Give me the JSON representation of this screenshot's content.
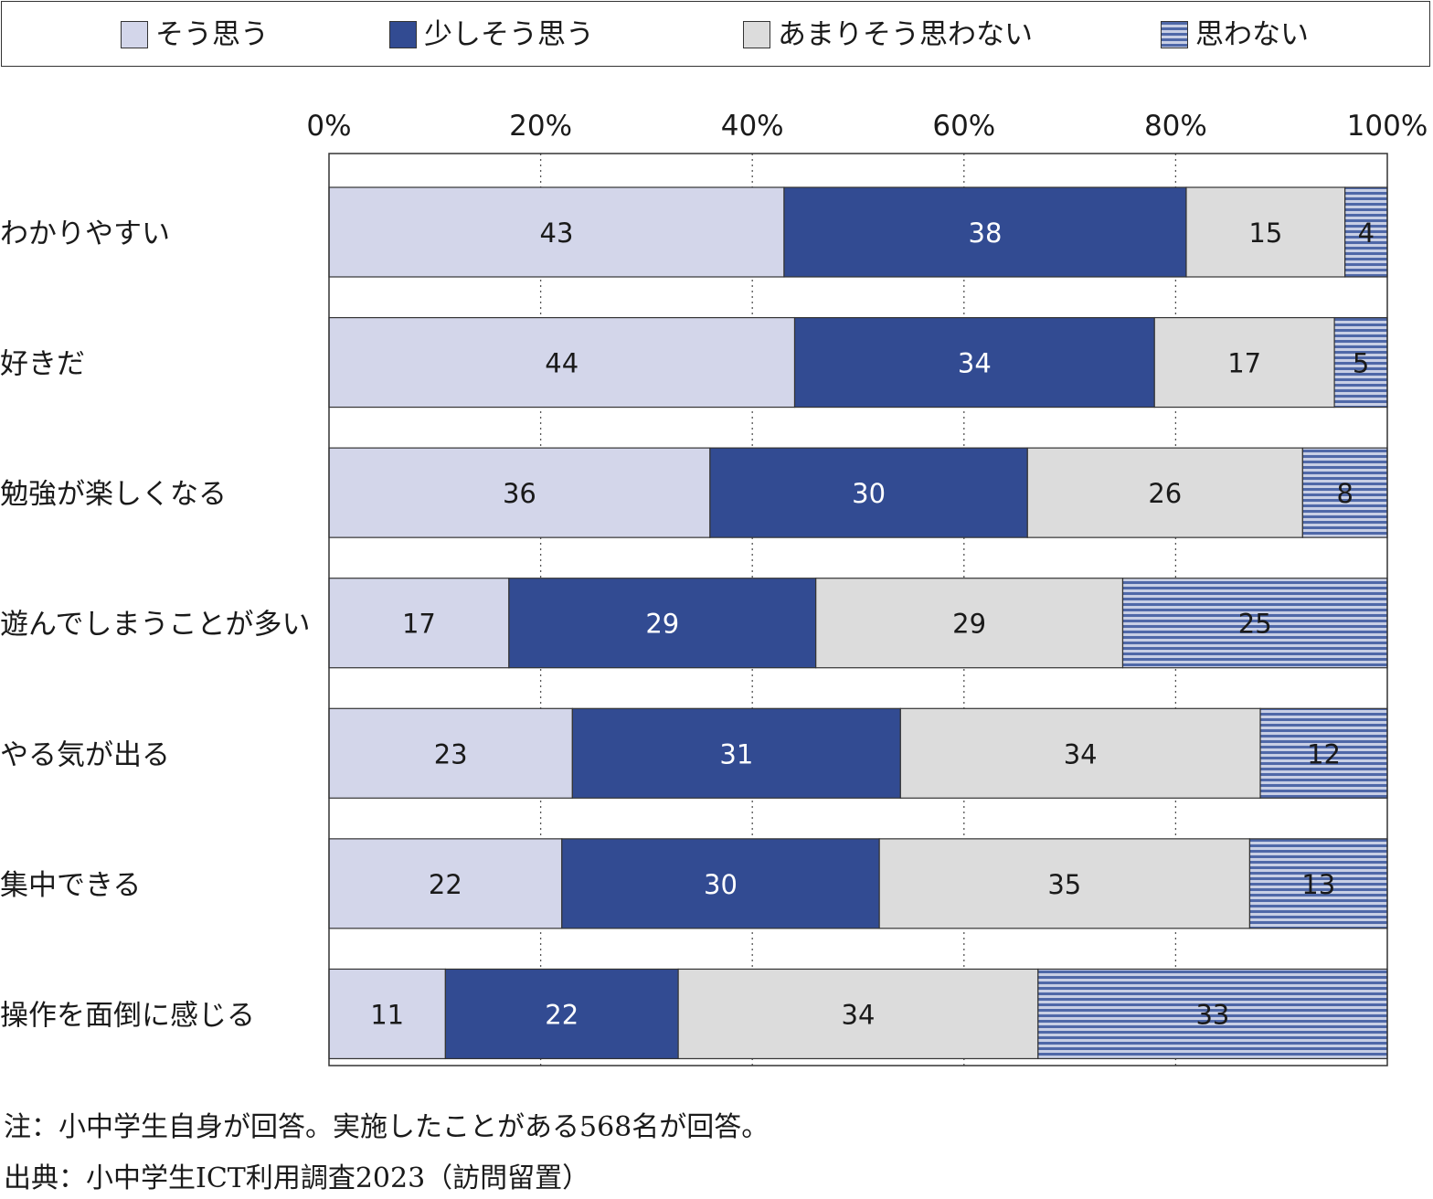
{
  "legend": {
    "items": [
      {
        "label": "そう思う",
        "color": "#d3d6ea"
      },
      {
        "label": "少しそう思う",
        "color": "#324b92"
      },
      {
        "label": "あまりそう思わない",
        "color": "#dcdcdc"
      },
      {
        "label": "思わない",
        "color": "#4f68a8",
        "pattern": "horizontal-stripes"
      }
    ]
  },
  "chart_data": {
    "type": "bar",
    "orientation": "horizontal",
    "stacked": true,
    "xlim": [
      0,
      100
    ],
    "x_ticks": [
      "0%",
      "20%",
      "40%",
      "60%",
      "80%",
      "100%"
    ],
    "grid": "vertical dotted",
    "legend_placement": "top",
    "categories": [
      "わかりやすい",
      "好きだ",
      "勉強が楽しくなる",
      "遊んでしまうことが多い",
      "やる気が出る",
      "集中できる",
      "操作を面倒に感じる"
    ],
    "series": [
      {
        "name": "そう思う",
        "values": [
          43,
          44,
          36,
          17,
          23,
          22,
          11
        ]
      },
      {
        "name": "少しそう思う",
        "values": [
          38,
          34,
          30,
          29,
          31,
          30,
          22
        ]
      },
      {
        "name": "あまりそう思わない",
        "values": [
          15,
          17,
          26,
          29,
          34,
          35,
          34
        ]
      },
      {
        "name": "思わない",
        "values": [
          4,
          5,
          8,
          25,
          12,
          13,
          33
        ]
      }
    ]
  },
  "notes": {
    "note": "注：小中学生自身が回答。実施したことがある568名が回答。",
    "source": "出典：小中学生ICT利用調査2023（訪問留置）"
  }
}
